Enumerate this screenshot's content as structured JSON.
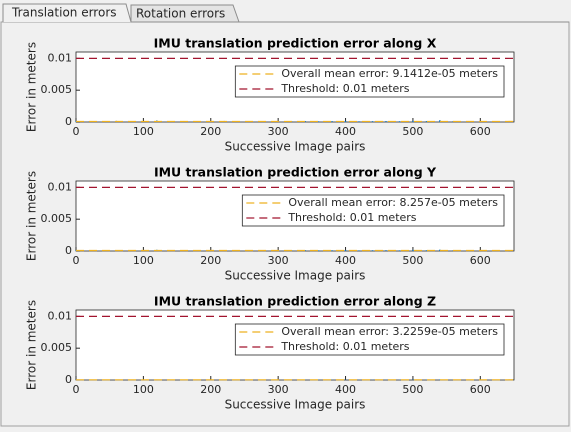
{
  "tabs": [
    "Translation errors",
    "Rotation errors"
  ],
  "chart_data": [
    {
      "type": "bar",
      "title": "IMU translation prediction error along X",
      "x_label": "Successive Image pairs",
      "y_label": "Error in meters",
      "x": [
        0,
        20,
        40,
        60,
        80,
        100,
        120,
        140,
        160,
        180,
        200,
        220,
        240,
        260,
        280,
        300,
        320,
        340,
        360,
        380,
        400,
        420,
        440,
        460,
        480,
        500,
        520,
        540,
        560,
        580,
        600,
        620,
        640
      ],
      "values": [
        0.00012,
        0.00015,
        0.0001,
        0.00018,
        0.00011,
        0.00014,
        0.00025,
        0.00013,
        0.00016,
        0.0001,
        0.00014,
        0.00017,
        0.00012,
        0.00015,
        0.00011,
        0.00013,
        0.00012,
        0.00016,
        0.00011,
        0.00014,
        0.00018,
        0.00011,
        0.00013,
        0.00015,
        0.00012,
        0.0002,
        0.00014,
        0.0003,
        0.00016,
        0.00013,
        0.00014,
        0.00012,
        0.00015
      ],
      "color": "#0072bd",
      "reference_lines": [
        {
          "name": "Overall mean error: 9.1412e-05 meters",
          "value": 9.1412e-05,
          "color": "#edb120"
        },
        {
          "name": "Threshold: 0.01 meters",
          "value": 0.01,
          "color": "#a2142f"
        }
      ],
      "xlim": [
        0,
        650
      ],
      "xticks": [
        0,
        100,
        200,
        300,
        400,
        500,
        600
      ],
      "ylim": [
        0,
        0.011
      ],
      "yticks": [
        0,
        0.005,
        0.01
      ]
    },
    {
      "type": "bar",
      "title": "IMU translation prediction error along Y",
      "x_label": "Successive Image pairs",
      "y_label": "Error in meters",
      "x": [
        0,
        20,
        40,
        60,
        80,
        100,
        120,
        140,
        160,
        180,
        200,
        220,
        240,
        260,
        280,
        300,
        320,
        340,
        360,
        380,
        400,
        420,
        440,
        460,
        480,
        500,
        520,
        540,
        560,
        580,
        600,
        620,
        640
      ],
      "values": [
        0.0001,
        0.00013,
        9e-05,
        0.00015,
        0.0001,
        0.00012,
        0.0002,
        0.00011,
        0.00014,
        9e-05,
        0.00012,
        0.00015,
        0.0001,
        0.00013,
        0.0001,
        0.00012,
        0.0001,
        0.00014,
        0.0001,
        0.00012,
        0.00016,
        0.0001,
        0.00012,
        0.00013,
        0.0001,
        0.00018,
        0.00012,
        0.00022,
        0.00014,
        0.00011,
        0.00012,
        0.0001,
        0.00013
      ],
      "color": "#0072bd",
      "reference_lines": [
        {
          "name": "Overall mean error: 8.257e-05 meters",
          "value": 8.257e-05,
          "color": "#edb120"
        },
        {
          "name": "Threshold: 0.01 meters",
          "value": 0.01,
          "color": "#a2142f"
        }
      ],
      "xlim": [
        0,
        650
      ],
      "xticks": [
        0,
        100,
        200,
        300,
        400,
        500,
        600
      ],
      "ylim": [
        0,
        0.011
      ],
      "yticks": [
        0,
        0.005,
        0.01
      ]
    },
    {
      "type": "bar",
      "title": "IMU translation prediction error along Z",
      "x_label": "Successive Image pairs",
      "y_label": "Error in meters",
      "x": [
        0,
        20,
        40,
        60,
        80,
        100,
        120,
        140,
        160,
        180,
        200,
        220,
        240,
        260,
        280,
        300,
        320,
        340,
        360,
        380,
        400,
        420,
        440,
        460,
        480,
        500,
        520,
        540,
        560,
        580,
        600,
        620,
        640
      ],
      "values": [
        4e-05,
        5e-05,
        3e-05,
        6e-05,
        4e-05,
        5e-05,
        8e-05,
        4e-05,
        5e-05,
        3e-05,
        5e-05,
        6e-05,
        4e-05,
        5e-05,
        4e-05,
        4e-05,
        4e-05,
        5e-05,
        4e-05,
        5e-05,
        6e-05,
        4e-05,
        4e-05,
        5e-05,
        4e-05,
        7e-05,
        5e-05,
        9e-05,
        5e-05,
        4e-05,
        5e-05,
        4e-05,
        5e-05
      ],
      "color": "#0072bd",
      "reference_lines": [
        {
          "name": "Overall mean error: 3.2259e-05 meters",
          "value": 3.2259e-05,
          "color": "#edb120"
        },
        {
          "name": "Threshold: 0.01 meters",
          "value": 0.01,
          "color": "#a2142f"
        }
      ],
      "xlim": [
        0,
        650
      ],
      "xticks": [
        0,
        100,
        200,
        300,
        400,
        500,
        600
      ],
      "ylim": [
        0,
        0.011
      ],
      "yticks": [
        0,
        0.005,
        0.01
      ]
    }
  ]
}
